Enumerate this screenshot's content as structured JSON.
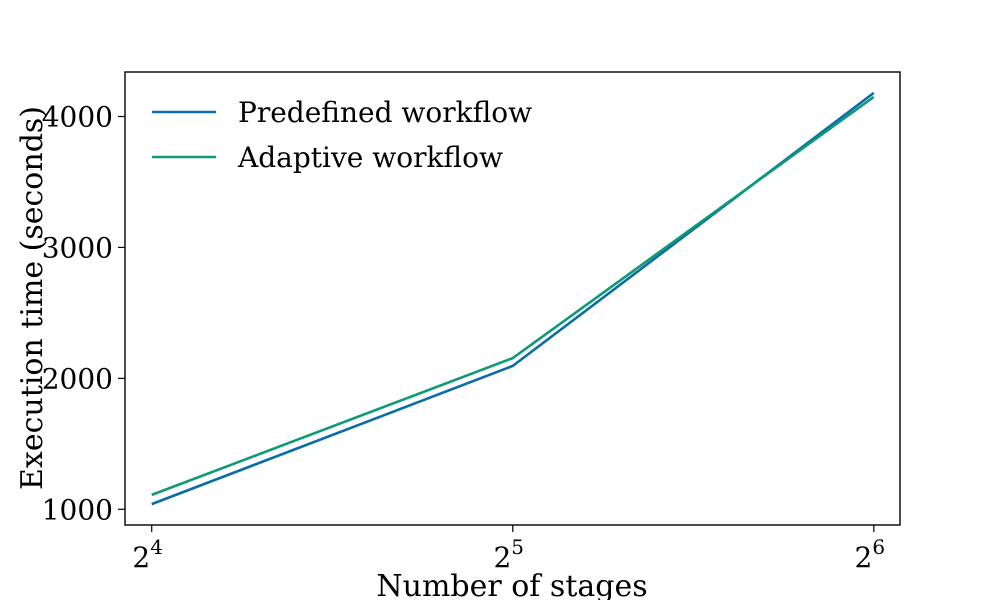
{
  "chart_data": {
    "type": "line",
    "xlabel": "Number of stages",
    "ylabel": "Execution time (seconds)",
    "x_scale": "log2",
    "x": [
      16,
      32,
      64
    ],
    "x_tick_labels": [
      {
        "base": "2",
        "exp": "4"
      },
      {
        "base": "2",
        "exp": "5"
      },
      {
        "base": "2",
        "exp": "6"
      }
    ],
    "xlim": [
      15.2,
      67.3
    ],
    "ylim": [
      880,
      4340
    ],
    "y_ticks": [
      1000,
      2000,
      3000,
      4000
    ],
    "grid": false,
    "legend_position": "top-left",
    "series": [
      {
        "name": "Predefined workflow",
        "color": "#0a6ca8",
        "values": [
          1040,
          2095,
          4180
        ]
      },
      {
        "name": "Adaptive workflow",
        "color": "#0e9a76",
        "values": [
          1110,
          2155,
          4150
        ]
      }
    ]
  }
}
